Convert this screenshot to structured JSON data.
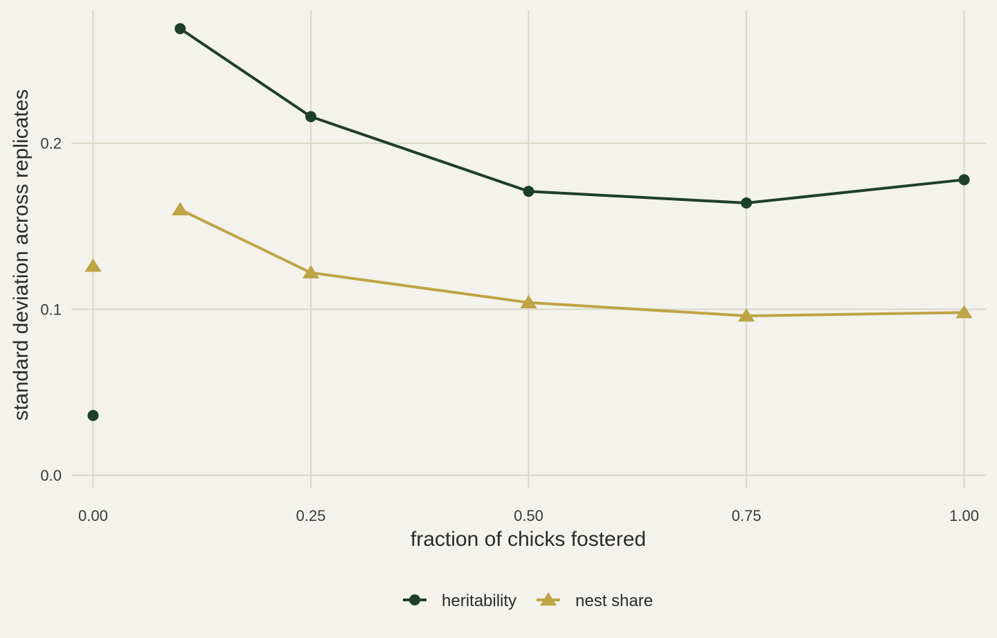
{
  "chart_data": {
    "type": "line",
    "xlabel": "fraction of chicks fostered",
    "ylabel": "standard deviation across replicates",
    "xlim": [
      -0.025,
      1.025
    ],
    "ylim": [
      -0.0075,
      0.28
    ],
    "x_ticks": [
      0,
      0.25,
      0.5,
      0.75,
      1
    ],
    "x_tick_labels": [
      "0.00",
      "0.25",
      "0.50",
      "0.75",
      "1.00"
    ],
    "y_ticks": [
      0,
      0.1,
      0.2
    ],
    "y_tick_labels": [
      "0.0",
      "0.1",
      "0.2"
    ],
    "grid": true,
    "legend_position": "bottom",
    "series": [
      {
        "name": "heritability",
        "marker": "circle",
        "color": "#1e3f2c",
        "points": [
          {
            "x": 0,
            "y": 0.036,
            "connected": false
          },
          {
            "x": 0.1,
            "y": 0.269,
            "connected": true
          },
          {
            "x": 0.25,
            "y": 0.216,
            "connected": true
          },
          {
            "x": 0.5,
            "y": 0.171,
            "connected": true
          },
          {
            "x": 0.75,
            "y": 0.164,
            "connected": true
          },
          {
            "x": 1,
            "y": 0.178,
            "connected": true
          }
        ]
      },
      {
        "name": "nest share",
        "marker": "triangle",
        "color": "#bfa446",
        "points": [
          {
            "x": 0,
            "y": 0.126,
            "connected": false
          },
          {
            "x": 0.1,
            "y": 0.16,
            "connected": true
          },
          {
            "x": 0.25,
            "y": 0.122,
            "connected": true
          },
          {
            "x": 0.5,
            "y": 0.104,
            "connected": true
          },
          {
            "x": 0.75,
            "y": 0.096,
            "connected": true
          },
          {
            "x": 1,
            "y": 0.098,
            "connected": true
          }
        ]
      }
    ]
  }
}
